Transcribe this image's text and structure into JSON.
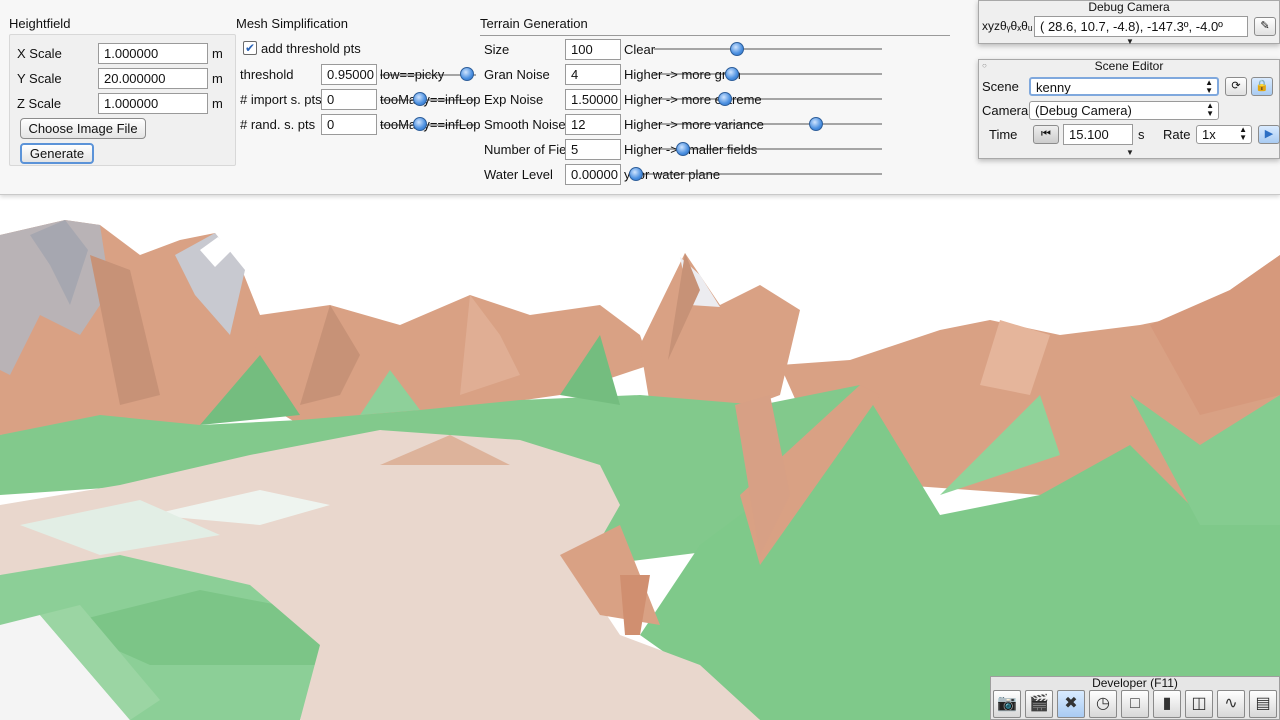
{
  "heightfield": {
    "title": "Heightfield",
    "rows": [
      {
        "label": "X Scale",
        "value": "1.000000",
        "unit": "m"
      },
      {
        "label": "Y Scale",
        "value": "20.000000",
        "unit": "m"
      },
      {
        "label": "Z Scale",
        "value": "1.000000",
        "unit": "m"
      }
    ],
    "choose_button": "Choose Image File",
    "generate_button": "Generate"
  },
  "mesh": {
    "title": "Mesh Simplification",
    "add_threshold_label": "add threshold pts",
    "add_threshold_checked": true,
    "rows": [
      {
        "label": "threshold",
        "value": "0.95000",
        "hint": "low==picky",
        "knob": 0.95
      },
      {
        "label": "# import s. pts",
        "value": "0",
        "hint": "tooMany==infLop",
        "knob": 0.4
      },
      {
        "label": "# rand. s. pts",
        "value": "0",
        "hint": "tooMany==infLop",
        "knob": 0.4
      }
    ]
  },
  "terrain": {
    "title": "Terrain Generation",
    "rows": [
      {
        "label": "Size",
        "value": "100",
        "hint": "Clear",
        "knob": 0.37
      },
      {
        "label": "Gran Noise",
        "value": "4",
        "hint": "Higher -> more gran",
        "knob": 0.35
      },
      {
        "label": "Exp Noise",
        "value": "1.50000",
        "hint": "Higher -> more extreme",
        "knob": 0.31
      },
      {
        "label": "Smooth Noise",
        "value": "12",
        "hint": "Higher -> more variance",
        "knob": 0.72
      },
      {
        "label": "Number of Fields",
        "value": "5",
        "hint": "Higher -> smaller fields",
        "knob": 0.14
      },
      {
        "label": "Water Level",
        "value": "0.00000",
        "hint": "y for water plane",
        "knob": 0.0
      }
    ]
  },
  "debug_camera": {
    "title": "Debug Camera",
    "xyz_label": "xyzθᵧθₓθᵤ",
    "value": "( 28.6,  10.7,  -4.8), -147.3º,  -4.0º"
  },
  "scene_editor": {
    "title": "Scene Editor",
    "scene_label": "Scene",
    "scene_value": "kenny",
    "camera_label": "Camera",
    "camera_value": "(Debug Camera)",
    "time_label": "Time",
    "time_value": "15.100",
    "time_unit": "s",
    "rate_label": "Rate",
    "rate_value": "1x"
  },
  "developer": {
    "title": "Developer (F11)",
    "icons": [
      "camera-icon",
      "clapper-icon",
      "tools-icon",
      "clock-icon",
      "new-window-icon",
      "terminal-icon",
      "scene-graph-icon",
      "profiler-icon",
      "document-icon"
    ]
  },
  "colors": {
    "panel_bg": "#f7f7f7",
    "accent": "#4a8fe0",
    "terrain_green": "#7fc98a",
    "terrain_rock": "#d9a184",
    "snow": "#e8ebef",
    "sky": "#ffffff"
  }
}
